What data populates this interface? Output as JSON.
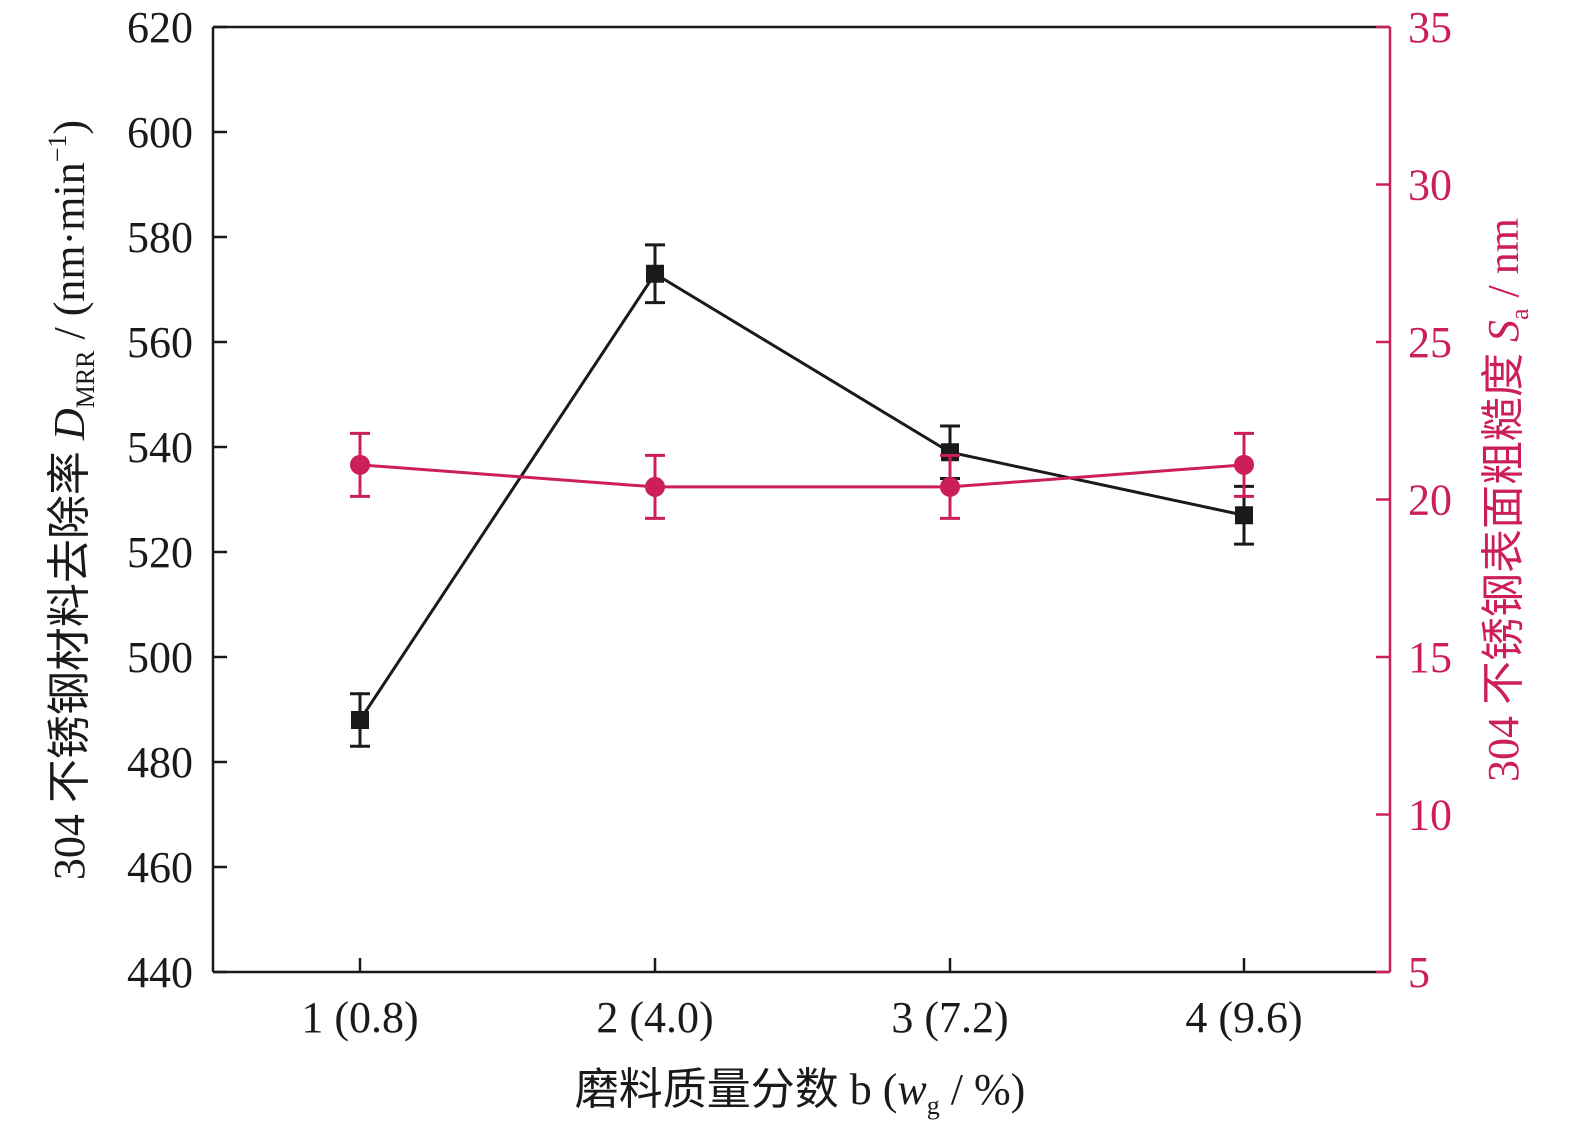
{
  "chart_data": {
    "type": "line",
    "categories": [
      "1 (0.8)",
      "2 (4.0)",
      "3 (7.2)",
      "4 (9.6)"
    ],
    "xlabel": {
      "text": "磨料质量分数 b (",
      "var": "w",
      "var_sub": "g",
      "unit": " / %)"
    },
    "ylabel_left": {
      "text": "304 不锈钢材料去除率 ",
      "var": "D",
      "var_sub": "MRR",
      "unit_pre": " / (nm·min",
      "unit_sup": "−1",
      "unit_post": ")"
    },
    "ylabel_right": {
      "text": "304 不锈钢表面粗糙度 ",
      "var": "S",
      "var_sub": "a",
      "unit": " / nm"
    },
    "ylim_left": [
      440,
      620
    ],
    "yticks_left": [
      440,
      460,
      480,
      500,
      520,
      540,
      560,
      580,
      600,
      620
    ],
    "ylim_right": [
      5,
      35
    ],
    "yticks_right": [
      5,
      10,
      15,
      20,
      25,
      30,
      35
    ],
    "grid": false,
    "series": [
      {
        "axis": "left",
        "marker": "square",
        "color": "#1a1a1a",
        "values": [
          488,
          573,
          539,
          527
        ],
        "errors": [
          5,
          5.5,
          5,
          5.5
        ]
      },
      {
        "axis": "right",
        "marker": "circle",
        "color": "#cc1f5a",
        "values": [
          21.1,
          20.4,
          20.4,
          21.1
        ],
        "errors": [
          1.0,
          1.0,
          1.0,
          1.0
        ]
      }
    ]
  }
}
